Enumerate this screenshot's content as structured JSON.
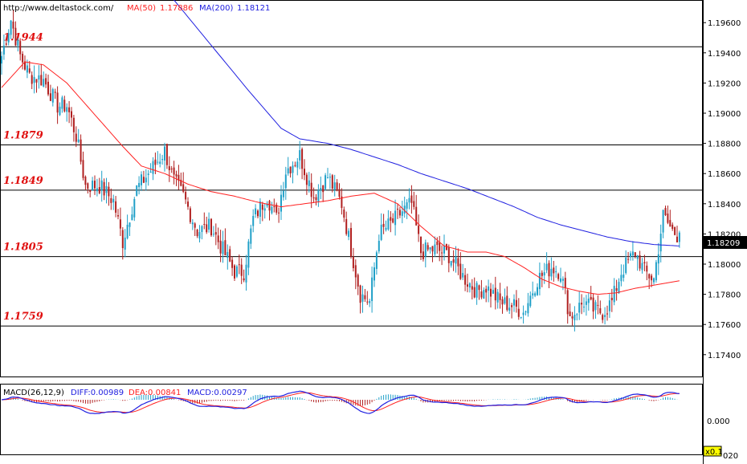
{
  "header": {
    "site": "http://www.deltastock.com/",
    "ma50_label": "MA(50)",
    "ma50_value": "1.17886",
    "ma200_label": "MA(200)",
    "ma200_value": "1.18121"
  },
  "macd_header": {
    "label": "MACD(26,12,9)",
    "diff": "DIFF:0.00989",
    "dea": "DEA:0.00841",
    "macd": "MACD:0.00297"
  },
  "colors": {
    "up": "#20a0c8",
    "down": "#b02020",
    "ma50": "#ff2020",
    "ma200": "#2020e0",
    "level": "#e01010",
    "price_box": "#000000"
  },
  "chart_data": [
    {
      "type": "candlestick",
      "title": "",
      "ylim": [
        1.1725,
        1.1975
      ],
      "y_ticks": [
        "1.19600",
        "1.19400",
        "1.19200",
        "1.19000",
        "1.18800",
        "1.18600",
        "1.18400",
        "1.18200",
        "1.18000",
        "1.17800",
        "1.17600",
        "1.17400"
      ],
      "last_price": "1.18209",
      "levels": [
        {
          "label": "1.1944",
          "value": 1.1944
        },
        {
          "label": "1.1879",
          "value": 1.1879
        },
        {
          "label": "1.1849",
          "value": 1.1849
        },
        {
          "label": "1.1805",
          "value": 1.1805
        },
        {
          "label": "1.1759",
          "value": 1.1759
        }
      ],
      "close_keypoints": [
        [
          0,
          1.1938
        ],
        [
          4,
          1.1962
        ],
        [
          8,
          1.1938
        ],
        [
          12,
          1.1925
        ],
        [
          18,
          1.1922
        ],
        [
          24,
          1.1905
        ],
        [
          28,
          1.1905
        ],
        [
          32,
          1.1885
        ],
        [
          36,
          1.1852
        ],
        [
          42,
          1.1852
        ],
        [
          48,
          1.1842
        ],
        [
          52,
          1.1815
        ],
        [
          58,
          1.185
        ],
        [
          64,
          1.1862
        ],
        [
          70,
          1.1875
        ],
        [
          74,
          1.1855
        ],
        [
          78,
          1.1845
        ],
        [
          84,
          1.1822
        ],
        [
          90,
          1.1825
        ],
        [
          94,
          1.1812
        ],
        [
          100,
          1.1795
        ],
        [
          104,
          1.1795
        ],
        [
          108,
          1.183
        ],
        [
          114,
          1.1845
        ],
        [
          118,
          1.183
        ],
        [
          122,
          1.1862
        ],
        [
          128,
          1.1872
        ],
        [
          134,
          1.1845
        ],
        [
          140,
          1.1858
        ],
        [
          146,
          1.184
        ],
        [
          150,
          1.181
        ],
        [
          154,
          1.178
        ],
        [
          158,
          1.1775
        ],
        [
          162,
          1.182
        ],
        [
          168,
          1.1828
        ],
        [
          172,
          1.1835
        ],
        [
          176,
          1.184
        ],
        [
          180,
          1.1808
        ],
        [
          186,
          1.181
        ],
        [
          192,
          1.1806
        ],
        [
          198,
          1.1792
        ],
        [
          204,
          1.1782
        ],
        [
          208,
          1.1785
        ],
        [
          214,
          1.1775
        ],
        [
          220,
          1.1772
        ],
        [
          224,
          1.1768
        ],
        [
          230,
          1.179
        ],
        [
          236,
          1.1798
        ],
        [
          240,
          1.1795
        ],
        [
          244,
          1.1765
        ],
        [
          250,
          1.1775
        ],
        [
          254,
          1.177
        ],
        [
          258,
          1.1768
        ],
        [
          262,
          1.1775
        ],
        [
          266,
          1.1795
        ],
        [
          272,
          1.1808
        ],
        [
          276,
          1.1795
        ],
        [
          280,
          1.179
        ],
        [
          284,
          1.1832
        ],
        [
          288,
          1.1822
        ],
        [
          291,
          1.1818
        ]
      ],
      "ma50_keypoints": [
        [
          0,
          1.1917
        ],
        [
          10,
          1.1934
        ],
        [
          18,
          1.1932
        ],
        [
          28,
          1.192
        ],
        [
          36,
          1.1906
        ],
        [
          44,
          1.1892
        ],
        [
          52,
          1.1878
        ],
        [
          60,
          1.1865
        ],
        [
          70,
          1.186
        ],
        [
          80,
          1.1853
        ],
        [
          90,
          1.1848
        ],
        [
          100,
          1.1845
        ],
        [
          110,
          1.1841
        ],
        [
          120,
          1.1838
        ],
        [
          130,
          1.184
        ],
        [
          140,
          1.1842
        ],
        [
          150,
          1.1845
        ],
        [
          160,
          1.1847
        ],
        [
          170,
          1.184
        ],
        [
          180,
          1.1825
        ],
        [
          190,
          1.1812
        ],
        [
          200,
          1.1808
        ],
        [
          208,
          1.1808
        ],
        [
          216,
          1.1805
        ],
        [
          224,
          1.1798
        ],
        [
          232,
          1.179
        ],
        [
          240,
          1.1785
        ],
        [
          248,
          1.1782
        ],
        [
          256,
          1.178
        ],
        [
          264,
          1.1781
        ],
        [
          272,
          1.1784
        ],
        [
          280,
          1.1786
        ],
        [
          291,
          1.1789
        ]
      ],
      "ma200_keypoints": [
        [
          74,
          1.1975
        ],
        [
          90,
          1.1945
        ],
        [
          106,
          1.1915
        ],
        [
          120,
          1.189
        ],
        [
          128,
          1.1883
        ],
        [
          140,
          1.188
        ],
        [
          150,
          1.1876
        ],
        [
          160,
          1.1871
        ],
        [
          170,
          1.1866
        ],
        [
          180,
          1.186
        ],
        [
          190,
          1.1855
        ],
        [
          200,
          1.185
        ],
        [
          210,
          1.1844
        ],
        [
          220,
          1.1838
        ],
        [
          230,
          1.1831
        ],
        [
          240,
          1.1826
        ],
        [
          250,
          1.1822
        ],
        [
          260,
          1.1818
        ],
        [
          270,
          1.1815
        ],
        [
          280,
          1.1813
        ],
        [
          291,
          1.1812
        ]
      ]
    },
    {
      "type": "macd",
      "ylim": [
        -0.02,
        0.02
      ],
      "y_ticks": [
        "0.000"
      ],
      "zoom_label": "x0.1",
      "bottom_tick": "020"
    }
  ]
}
